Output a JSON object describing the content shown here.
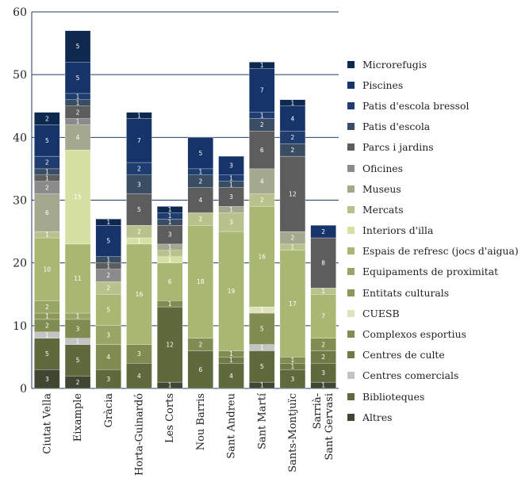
{
  "chart_data": {
    "type": "bar",
    "stacked": true,
    "title": "",
    "xlabel": "",
    "ylabel": "",
    "ylim": [
      0,
      60
    ],
    "yticks": [
      0,
      10,
      20,
      30,
      40,
      50,
      60
    ],
    "grid": true,
    "legend_position": "right",
    "categories": [
      "Ciutat Vella",
      "Eixample",
      "Gràcia",
      "Horta-Guinardó",
      "Les Corts",
      "Nou Barris",
      "Sant Andreu",
      "Sant Martí",
      "Sants-Montjuïc",
      "Sarrià-Sant Gervasi"
    ],
    "series": [
      {
        "name": "Altres",
        "color": "#3f4632",
        "values": [
          3,
          2,
          0,
          0,
          1,
          0,
          0,
          1,
          0,
          1
        ]
      },
      {
        "name": "Biblioteques",
        "color": "#5e6a3e",
        "values": [
          5,
          5,
          3,
          4,
          12,
          6,
          4,
          5,
          3,
          3
        ]
      },
      {
        "name": "Centres comercials",
        "color": "#c4c4c4",
        "values": [
          1,
          1,
          0,
          0,
          0,
          0,
          0,
          1,
          0,
          0
        ]
      },
      {
        "name": "Centres de culte",
        "color": "#6e7b46",
        "values": [
          0,
          0,
          0,
          0,
          0,
          0,
          1,
          0,
          1,
          2
        ]
      },
      {
        "name": "Complexos esportius",
        "color": "#7f8c52",
        "values": [
          2,
          3,
          4,
          3,
          1,
          2,
          1,
          5,
          1,
          2
        ]
      },
      {
        "name": "CUESB",
        "color": "#dfe2ba",
        "values": [
          0,
          0,
          0,
          0,
          0,
          0,
          0,
          1,
          0,
          0
        ]
      },
      {
        "name": "Entitats culturals",
        "color": "#8d9858",
        "values": [
          1,
          0,
          0,
          0,
          0,
          0,
          0,
          0,
          0,
          0
        ]
      },
      {
        "name": "Equipaments de proximitat",
        "color": "#97a665",
        "values": [
          2,
          1,
          3,
          0,
          0,
          0,
          0,
          0,
          0,
          0
        ]
      },
      {
        "name": "Espais de refresc (jocs d'aigua)",
        "color": "#a8b872",
        "values": [
          10,
          11,
          5,
          16,
          6,
          18,
          19,
          16,
          17,
          7
        ]
      },
      {
        "name": "Interiors d'illa",
        "color": "#d6e0a2",
        "values": [
          0,
          15,
          0,
          1,
          1,
          0,
          0,
          0,
          0,
          0
        ]
      },
      {
        "name": "Mercats",
        "color": "#b9c18d",
        "values": [
          1,
          0,
          2,
          2,
          1,
          2,
          3,
          2,
          1,
          1
        ]
      },
      {
        "name": "Museus",
        "color": "#a3a88f",
        "values": [
          6,
          4,
          0,
          0,
          1,
          0,
          1,
          4,
          2,
          0
        ]
      },
      {
        "name": "Oficines",
        "color": "#8b8b8b",
        "values": [
          2,
          1,
          2,
          0,
          0,
          0,
          0,
          0,
          0,
          0
        ]
      },
      {
        "name": "Parcs i jardins",
        "color": "#5d5d5d",
        "values": [
          1,
          2,
          1,
          5,
          3,
          4,
          3,
          6,
          12,
          8
        ]
      },
      {
        "name": "Patis d'escola",
        "color": "#3a4d63",
        "values": [
          1,
          1,
          1,
          3,
          1,
          2,
          1,
          2,
          2,
          0
        ]
      },
      {
        "name": "Patis d'escola bressol",
        "color": "#1f3d6e",
        "values": [
          2,
          1,
          0,
          2,
          1,
          1,
          1,
          1,
          2,
          0
        ]
      },
      {
        "name": "Piscines",
        "color": "#16346a",
        "values": [
          5,
          5,
          5,
          7,
          0,
          5,
          3,
          7,
          4,
          2
        ]
      },
      {
        "name": "Microrefugis",
        "color": "#0f2850",
        "values": [
          2,
          5,
          1,
          1,
          1,
          0,
          0,
          1,
          1,
          0
        ]
      }
    ]
  }
}
